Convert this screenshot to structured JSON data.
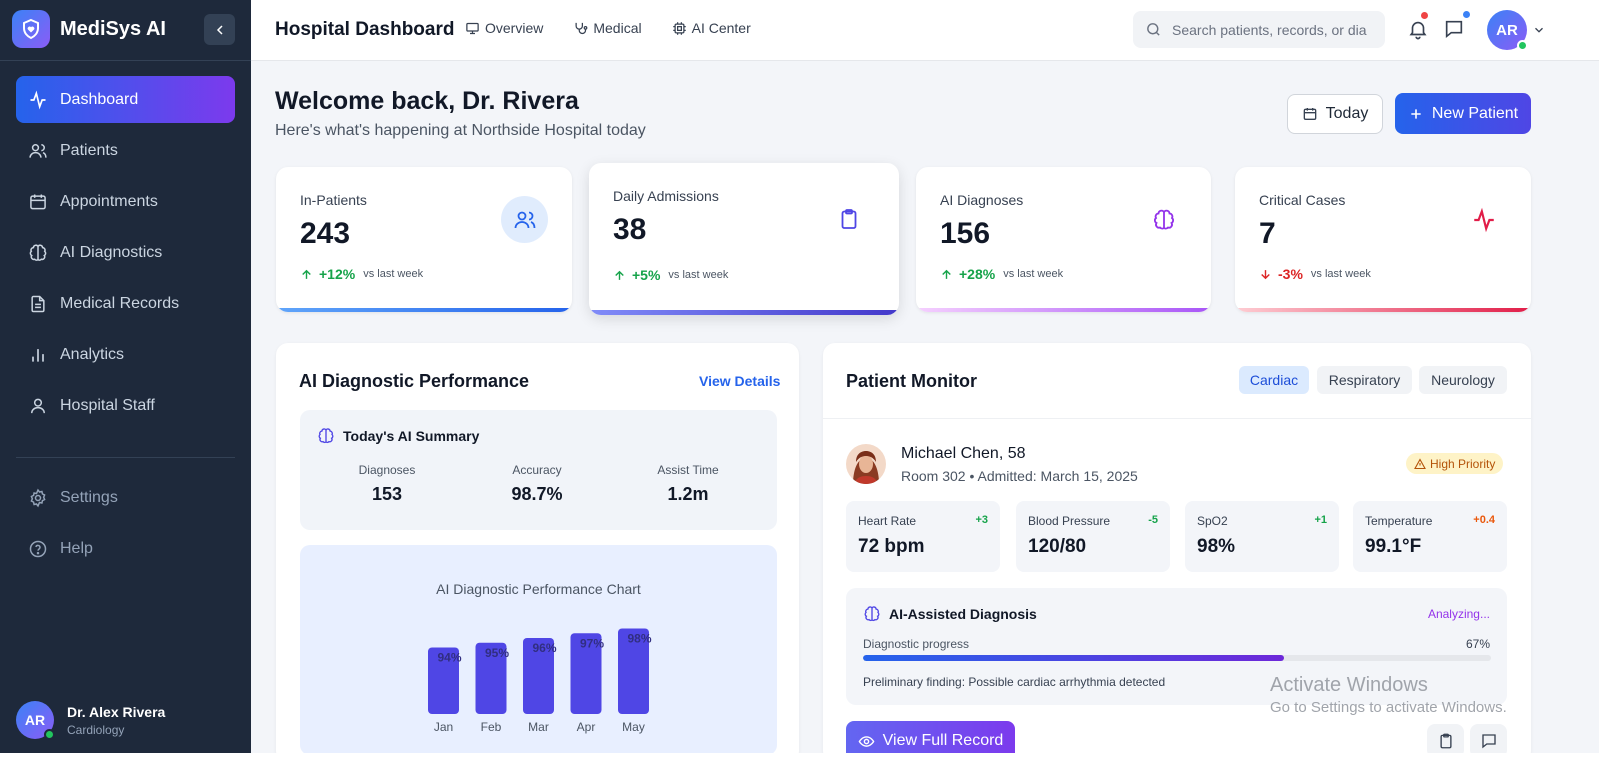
{
  "app": {
    "name": "MediSys AI"
  },
  "sidebar": {
    "items": [
      {
        "label": "Dashboard",
        "icon": "activity-icon",
        "active": true
      },
      {
        "label": "Patients",
        "icon": "users-icon"
      },
      {
        "label": "Appointments",
        "icon": "calendar-icon"
      },
      {
        "label": "AI Diagnostics",
        "icon": "brain-icon"
      },
      {
        "label": "Medical Records",
        "icon": "file-text-icon"
      },
      {
        "label": "Analytics",
        "icon": "bar-chart-icon"
      },
      {
        "label": "Hospital Staff",
        "icon": "user-icon"
      }
    ],
    "secondary": [
      {
        "label": "Settings",
        "icon": "gear-icon"
      },
      {
        "label": "Help",
        "icon": "help-circle-icon"
      }
    ],
    "user": {
      "initials": "AR",
      "name": "Dr. Alex Rivera",
      "role": "Cardiology"
    }
  },
  "header": {
    "title": "Hospital Dashboard",
    "nav": [
      {
        "label": "Overview",
        "icon": "monitor-icon"
      },
      {
        "label": "Medical",
        "icon": "stethoscope-icon"
      },
      {
        "label": "AI Center",
        "icon": "cpu-icon"
      }
    ],
    "search_placeholder": "Search patients, records, or diagnoses...",
    "avatar_initials": "AR"
  },
  "welcome": {
    "title": "Welcome back, Dr. Rivera",
    "subtitle": "Here's what's happening at Northside Hospital today",
    "today_button": "Today",
    "new_patient_button": "New Patient"
  },
  "stats": [
    {
      "label": "In-Patients",
      "value": "243",
      "change": "+12%",
      "direction": "up",
      "compare": "vs last week",
      "icon": "users-icon"
    },
    {
      "label": "Daily Admissions",
      "value": "38",
      "change": "+5%",
      "direction": "up",
      "compare": "vs last week",
      "icon": "clipboard-icon"
    },
    {
      "label": "AI Diagnoses",
      "value": "156",
      "change": "+28%",
      "direction": "up",
      "compare": "vs last week",
      "icon": "brain-icon"
    },
    {
      "label": "Critical Cases",
      "value": "7",
      "change": "-3%",
      "direction": "down",
      "compare": "vs last week",
      "icon": "activity-icon"
    }
  ],
  "ai_performance": {
    "title": "AI Diagnostic Performance",
    "view_details": "View Details",
    "summary_title": "Today's AI Summary",
    "summary": [
      {
        "label": "Diagnoses",
        "value": "153"
      },
      {
        "label": "Accuracy",
        "value": "98.7%"
      },
      {
        "label": "Assist Time",
        "value": "1.2m"
      }
    ]
  },
  "chart_data": {
    "type": "bar",
    "title": "AI Diagnostic Performance Chart",
    "categories": [
      "Jan",
      "Feb",
      "Mar",
      "Apr",
      "May"
    ],
    "values": [
      94,
      95,
      96,
      97,
      98
    ],
    "value_labels": [
      "94%",
      "95%",
      "96%",
      "97%",
      "98%"
    ],
    "bar_color": "#4f46e5"
  },
  "patient_monitor": {
    "title": "Patient Monitor",
    "tabs": [
      {
        "label": "Cardiac",
        "active": true
      },
      {
        "label": "Respiratory"
      },
      {
        "label": "Neurology"
      }
    ],
    "patient": {
      "name": "Michael Chen, 58",
      "details": "Room 302 • Admitted: March 15, 2025",
      "priority": "High Priority"
    },
    "vitals": [
      {
        "label": "Heart Rate",
        "value": "72 bpm",
        "delta": "+3",
        "color": "#16a34a"
      },
      {
        "label": "Blood Pressure",
        "value": "120/80",
        "delta": "-5",
        "color": "#16a34a"
      },
      {
        "label": "SpO2",
        "value": "98%",
        "delta": "+1",
        "color": "#16a34a"
      },
      {
        "label": "Temperature",
        "value": "99.1°F",
        "delta": "+0.4",
        "color": "#ea580c"
      }
    ],
    "ai_diagnosis": {
      "title": "AI-Assisted Diagnosis",
      "status": "Analyzing...",
      "progress_label": "Diagnostic progress",
      "progress_text": "67%",
      "progress": 0.67,
      "finding": "Preliminary finding: Possible cardiac arrhythmia detected"
    },
    "view_record_button": "View Full Record"
  },
  "watermark": {
    "line1": "Activate Windows",
    "line2": "Go to Settings to activate Windows."
  }
}
